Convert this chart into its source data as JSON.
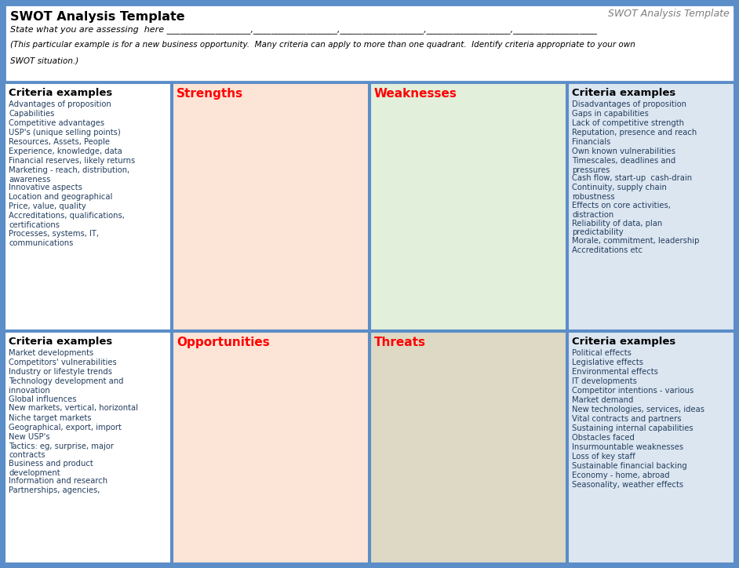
{
  "title": "SWOT Analysis Template",
  "watermark": "SWOT Analysis Template",
  "subtitle_line1": "State what you are assessing  here ___________________,___________________,___________________,___________________,___________________",
  "subtitle_line2": "(This particular example is for a new business opportunity.  Many criteria can apply to more than one quadrant.  Identify criteria appropriate to your own",
  "subtitle_line3": "SWOT situation.)",
  "outer_bg": "#5b8dc8",
  "header_bg": "#ffffff",
  "cell_border": "#5b8dc8",
  "criteria_tl_bg": "#ffffff",
  "strengths_bg": "#fce4d6",
  "weaknesses_bg": "#e2efda",
  "criteria_tr_bg": "#dce6f1",
  "criteria_bl_bg": "#ffffff",
  "opportunities_bg": "#fce4d6",
  "threats_bg": "#ddd9c4",
  "criteria_br_bg": "#dce6f1",
  "title_color": "#000000",
  "watermark_color": "#7f7f7f",
  "header_italic_color": "#000000",
  "criteria_header_color": "#000000",
  "swot_header_color": "#ff0000",
  "body_text_color": "#243f60",
  "strengths_criteria": [
    "Advantages of proposition",
    "Capabilities",
    "Competitive advantages",
    "USP's (unique selling points)",
    "Resources, Assets, People",
    "Experience, knowledge, data",
    "Financial reserves, likely returns",
    "Marketing - reach, distribution,\nawareness",
    "Innovative aspects",
    "Location and geographical",
    "Price, value, quality",
    "Accreditations, qualifications,\ncertifications",
    "Processes, systems, IT,\ncommunications"
  ],
  "weaknesses_criteria": [
    "Disadvantages of proposition",
    "Gaps in capabilities",
    "Lack of competitive strength",
    "Reputation, presence and reach",
    "Financials",
    "Own known vulnerabilities",
    "Timescales, deadlines and\npressures",
    "Cash flow, start-up  cash-drain",
    "Continuity, supply chain\nrobustness",
    "Effects on core activities,\ndistraction",
    "Reliability of data, plan\npredictability",
    "Morale, commitment, leadership",
    "Accreditations etc"
  ],
  "opportunities_criteria": [
    "Market developments",
    "Competitors' vulnerabilities",
    "Industry or lifestyle trends",
    "Technology development and\ninnovation",
    "Global influences",
    "New markets, vertical, horizontal",
    "Niche target markets",
    "Geographical, export, import",
    "New USP's",
    "Tactics: eg, surprise, major\ncontracts",
    "Business and product\ndevelopment",
    "Information and research",
    "Partnerships, agencies,"
  ],
  "threats_criteria": [
    "Political effects",
    "Legislative effects",
    "Environmental effects",
    "IT developments",
    "Competitor intentions - various",
    "Market demand",
    "New technologies, services, ideas",
    "Vital contracts and partners",
    "Sustaining internal capabilities",
    "Obstacles faced",
    "Insurmountable weaknesses",
    "Loss of key staff",
    "Sustainable financial backing",
    "Economy - home, abroad",
    "Seasonality, weather effects"
  ]
}
